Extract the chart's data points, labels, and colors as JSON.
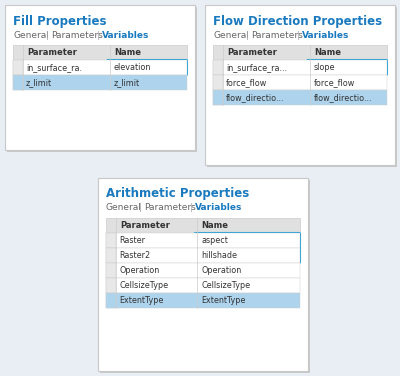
{
  "bg_color": "#e8eef4",
  "panel_bg": "#ffffff",
  "panel_border": "#c8c8c8",
  "title_color": "#1a7abf",
  "tab_normal_color": "#666666",
  "tab_sep_color": "#aaaaaa",
  "tab_active_color": "#1a7abf",
  "header_bg": "#e0e0e0",
  "row_bg_white": "#ffffff",
  "row_bg_alt": "#f5f5f5",
  "row_bg_blue": "#aed4ed",
  "highlight_border": "#1a9cd8",
  "highlight_fill": "#deeef8",
  "col_line": "#cccccc",
  "text_color": "#333333",
  "panel1": {
    "title": "Fill Properties",
    "tabs": [
      "General",
      " | ",
      "Parameters",
      " | ",
      "Variables"
    ],
    "active_tab": "Variables",
    "col_split": 0.5,
    "rows": [
      {
        "param": "in_surface_ra.",
        "name": "elevation",
        "highlighted": true,
        "blue": false
      },
      {
        "param": "z_limit",
        "name": "z_limit",
        "highlighted": false,
        "blue": true
      }
    ]
  },
  "panel2": {
    "title": "Flow Direction Properties",
    "tabs": [
      "General",
      " | ",
      "Parameters",
      " | ",
      "Variables"
    ],
    "active_tab": "Variables",
    "col_split": 0.5,
    "rows": [
      {
        "param": "in_surface_ra...",
        "name": "slope",
        "highlighted": true,
        "blue": false
      },
      {
        "param": "force_flow",
        "name": "force_flow",
        "highlighted": false,
        "blue": false
      },
      {
        "param": "flow_directio...",
        "name": "flow_directio...",
        "highlighted": false,
        "blue": true
      }
    ]
  },
  "panel3": {
    "title": "Arithmetic Properties",
    "tabs": [
      "General",
      " | ",
      "Parameters",
      " | ",
      "Variables"
    ],
    "active_tab": "Variables",
    "col_split": 0.42,
    "rows": [
      {
        "param": "Raster",
        "name": "aspect",
        "highlighted": true,
        "blue": false
      },
      {
        "param": "Raster2",
        "name": "hillshade",
        "highlighted": true,
        "blue": false
      },
      {
        "param": "Operation",
        "name": "Operation",
        "highlighted": false,
        "blue": false
      },
      {
        "param": "CellsizeType",
        "name": "CellsizeType",
        "highlighted": false,
        "blue": false
      },
      {
        "param": "ExtentType",
        "name": "ExtentType",
        "highlighted": false,
        "blue": true
      }
    ]
  }
}
